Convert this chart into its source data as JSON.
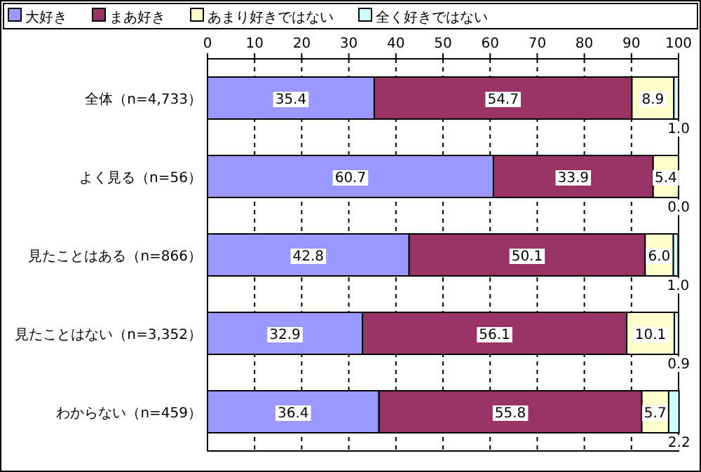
{
  "chart_data": {
    "type": "bar",
    "orientation": "horizontal",
    "stacked": true,
    "grid": "x",
    "legend": "top",
    "categories": [
      "全体（n=4,733）",
      "よく見る（n=56）",
      "見たことはある（n=866）",
      "見たことはない（n=3,352）",
      "わからない（n=459）"
    ],
    "xlim": [
      0,
      100
    ],
    "xticks": [
      0,
      10,
      20,
      30,
      40,
      50,
      60,
      70,
      80,
      90,
      100
    ],
    "series": [
      {
        "name": "大好き",
        "color": "#9999ff",
        "values": [
          35.4,
          60.7,
          42.8,
          32.9,
          36.4
        ],
        "value_labels": [
          "35.4",
          "60.7",
          "42.8",
          "32.9",
          "36.4"
        ]
      },
      {
        "name": "まあ好き",
        "color": "#993366",
        "values": [
          54.7,
          33.9,
          50.1,
          56.1,
          55.8
        ],
        "value_labels": [
          "54.7",
          "33.9",
          "50.1",
          "56.1",
          "55.8"
        ]
      },
      {
        "name": "あまり好きではない",
        "color": "#ffffcc",
        "values": [
          8.9,
          5.4,
          6.0,
          10.1,
          5.7
        ],
        "value_labels": [
          "8.9",
          "5.4",
          "6.0",
          "10.1",
          "5.7"
        ]
      },
      {
        "name": "全く好きではない",
        "color": "#ccffff",
        "values": [
          1.0,
          0.0,
          1.0,
          0.9,
          2.2
        ],
        "value_labels": [
          "1.0",
          "0.0",
          "1.0",
          "0.9",
          "2.2"
        ]
      }
    ]
  }
}
